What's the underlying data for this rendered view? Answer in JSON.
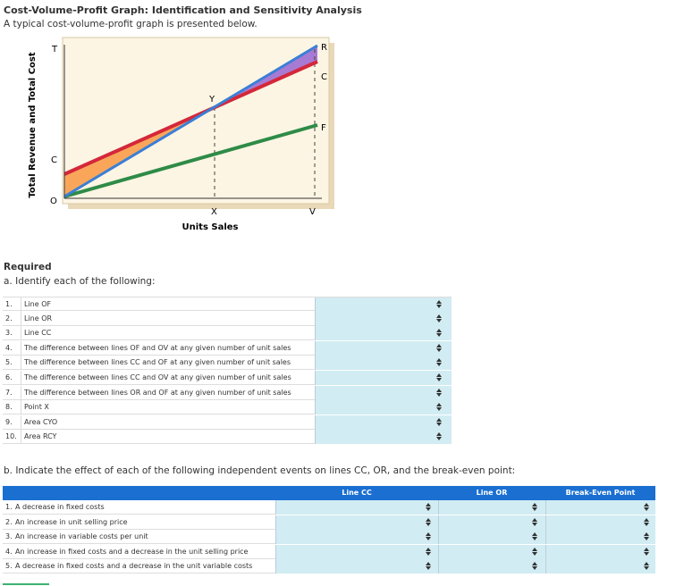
{
  "header": {
    "title": "Cost-Volume-Profit Graph: Identification and Sensitivity Analysis",
    "subtitle": "A typical cost-volume-profit graph is presented below."
  },
  "graph": {
    "y_axis_label": "Total Revenue and Total Cost",
    "x_axis_label": "Units Sales",
    "labels": {
      "T": "T",
      "C_left": "C",
      "O": "O",
      "Y": "Y",
      "R": "R",
      "C_right": "C",
      "F": "F",
      "X": "X",
      "V": "V"
    }
  },
  "required": {
    "heading": "Required",
    "part_a": {
      "prompt": "a. Identify each of the following:",
      "rows": [
        {
          "number": "1.",
          "text": "Line OF"
        },
        {
          "number": "2.",
          "text": "Line OR"
        },
        {
          "number": "3.",
          "text": "Line CC"
        },
        {
          "number": "4.",
          "text": "The difference between lines OF and OV at any given number of unit sales"
        },
        {
          "number": "5.",
          "text": "The difference between lines CC and OF at any given number of unit sales"
        },
        {
          "number": "6.",
          "text": "The difference between lines CC and OV at any given number of unit sales"
        },
        {
          "number": "7.",
          "text": "The difference between lines OR and OF at any given number of unit sales"
        },
        {
          "number": "8.",
          "text": "Point X"
        },
        {
          "number": "9.",
          "text": "Area CYO"
        },
        {
          "number": "10.",
          "text": "Area RCY"
        }
      ]
    },
    "part_b": {
      "prompt": "b. Indicate the effect of each of the following independent events on lines CC, OR, and the break-even point:",
      "headers": [
        "Line CC",
        "Line OR",
        "Break-Even Point"
      ],
      "rows": [
        {
          "number": "1.",
          "text": "A decrease in fixed costs"
        },
        {
          "number": "2.",
          "text": "An increase in unit selling price"
        },
        {
          "number": "3.",
          "text": "An increase in variable costs per unit"
        },
        {
          "number": "4.",
          "text": "An increase in fixed costs and a decrease in the unit selling price"
        },
        {
          "number": "5.",
          "text": "A decrease in fixed costs and a decrease in the unit variable costs"
        }
      ]
    }
  }
}
